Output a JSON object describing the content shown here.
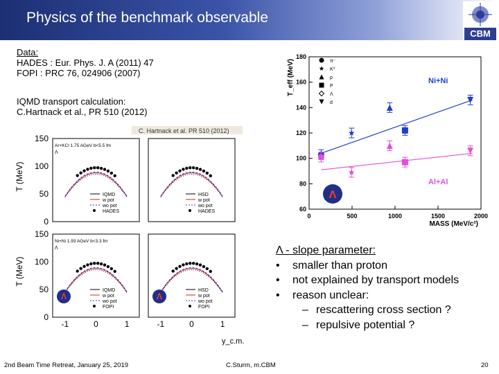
{
  "slide": {
    "title": "Physics of the benchmark observable",
    "logo_text": "CBM",
    "data_label": "Data:",
    "data_lines": [
      "HADES : Eur. Phys. J. A (2011) 47",
      "FOPI : PRC 76, 024906 (2007)"
    ],
    "model_lines": [
      "IQMD transport calculation:",
      "C.Hartnack et al., PR 510 (2012)"
    ],
    "bullets": {
      "heading": "Λ - slope  parameter:",
      "items": [
        "smaller than proton",
        "not explained by transport models",
        "reason unclear:"
      ],
      "subitems": [
        "rescattering cross section ?",
        "repulsive potential ?"
      ]
    },
    "footer": {
      "left": "2nd Beam Time Retreat, January 25,  2019",
      "center": "C.Sturm, m.CBM",
      "page": "20"
    }
  },
  "colors": {
    "blue": "#1f3ec8",
    "magenta": "#e24fd9",
    "header_dark": "#1c2f73"
  },
  "chart_data": [
    {
      "type": "scatter",
      "title": "",
      "xlabel": "MASS (MeV/c²)",
      "ylabel": "T_eff (MeV)",
      "xlim": [
        0,
        2000
      ],
      "ylim": [
        60,
        180
      ],
      "xticks": [
        "0",
        "500",
        "1000",
        "1500",
        "2000"
      ],
      "yticks": [
        "60",
        "80",
        "100",
        "120",
        "140",
        "160",
        "180"
      ],
      "legend": [
        "π⁻",
        "K⁰",
        "p",
        "P",
        "Λ",
        "d"
      ],
      "series": [
        {
          "name": "Ni+Ni",
          "line": [
            [
              140,
              104
            ],
            [
              1900,
              146
            ]
          ],
          "points": [
            [
              140,
              103,
              "circle"
            ],
            [
              494,
              120,
              "star"
            ],
            [
              938,
              140,
              "triangle"
            ],
            [
              1116,
              122,
              "square"
            ],
            [
              1876,
              146,
              "triangle-down"
            ]
          ]
        },
        {
          "name": "Al+Al",
          "line": [
            [
              140,
              91
            ],
            [
              1900,
              104
            ]
          ],
          "points": [
            [
              140,
              101,
              "circle"
            ],
            [
              494,
              89,
              "star"
            ],
            [
              938,
              110,
              "triangle"
            ],
            [
              1116,
              97,
              "square"
            ],
            [
              1876,
              106,
              "triangle-down"
            ]
          ]
        }
      ]
    },
    {
      "type": "line",
      "header": "C. Hartnack et al. PR 510 (2012)",
      "xlabel": "y_c.m.",
      "ylabel": "T (MeV)",
      "xlim": [
        -1.4,
        1.4
      ],
      "ylim": [
        0,
        150
      ],
      "xticks": [
        "-1",
        "0",
        "1"
      ],
      "yticks": [
        "0",
        "50",
        "100",
        "150"
      ],
      "panels": [
        {
          "system": "Ar+KCl 1.75 AGeV  b<5.5 fm",
          "particle": "Λ",
          "model": "IQMD",
          "legend": [
            "IQMD",
            "w pot",
            "wo pot",
            "HADES"
          ]
        },
        {
          "model": "HSD",
          "legend": [
            "HSD",
            "w pot",
            "wo pot",
            "HADES"
          ]
        },
        {
          "system": "Ni+Ni 1.93 AGeV  b<3.3 fm",
          "particle": "Λ",
          "model": "IQMD",
          "legend": [
            "IQMD",
            "w pot",
            "wo pot",
            "FOPI"
          ]
        },
        {
          "model": "HSD",
          "legend": [
            "HSD",
            "w pot",
            "wo pot",
            "FOPI"
          ]
        }
      ]
    }
  ]
}
